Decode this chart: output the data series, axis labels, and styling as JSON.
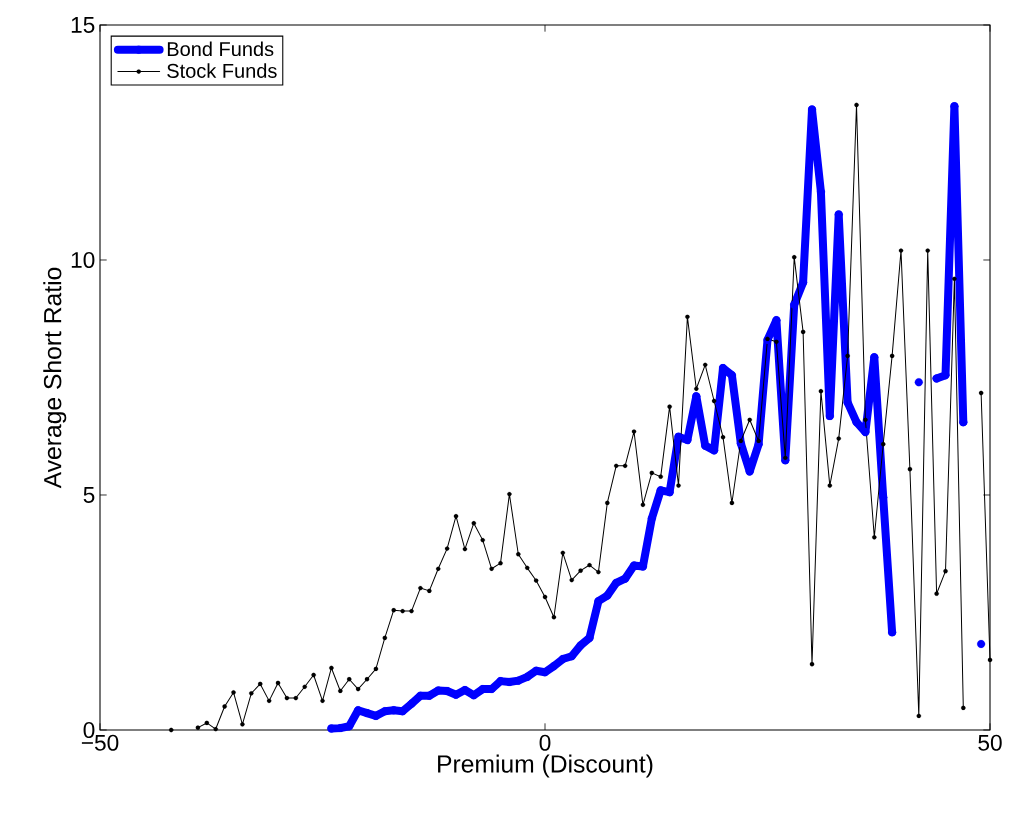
{
  "chart_data": {
    "type": "line",
    "xlabel": "Premium (Discount)",
    "ylabel": "Average Short Ratio",
    "xlim": [
      -50,
      50
    ],
    "ylim": [
      0,
      15
    ],
    "xticks": [
      {
        "value": -50,
        "label": "−50"
      },
      0,
      50
    ],
    "yticks": [
      0,
      5,
      10,
      15
    ],
    "legend": "top left",
    "grid": false,
    "series": [
      {
        "name": "Bond Funds",
        "color": "#0000ff",
        "line_style": "solid",
        "marker": "circle",
        "x": [
          -24,
          -23,
          -22,
          -21,
          -20,
          -19,
          -18,
          -17,
          -16,
          -15,
          -14,
          -13,
          -12,
          -11,
          -10,
          -9,
          -8,
          -7,
          -6,
          -5,
          -4,
          -3,
          -2,
          -1,
          0,
          1,
          2,
          3,
          4,
          5,
          6,
          7,
          8,
          9,
          10,
          11,
          12,
          13,
          14,
          15,
          16,
          17,
          18,
          19,
          20,
          21,
          22,
          23,
          24,
          25,
          26,
          27,
          28,
          29,
          30,
          31,
          32,
          33,
          34,
          35,
          36,
          37,
          38,
          39,
          40,
          41,
          42,
          43,
          44,
          45,
          46,
          47,
          48,
          49
        ],
        "values": [
          0.03,
          0.04,
          0.08,
          0.42,
          0.36,
          0.3,
          0.4,
          0.42,
          0.4,
          0.56,
          0.73,
          0.73,
          0.84,
          0.83,
          0.75,
          0.85,
          0.74,
          0.87,
          0.87,
          1.04,
          1.02,
          1.05,
          1.13,
          1.26,
          1.23,
          1.36,
          1.51,
          1.57,
          1.8,
          1.96,
          2.74,
          2.86,
          3.13,
          3.22,
          3.5,
          3.48,
          4.5,
          5.1,
          5.06,
          6.24,
          6.17,
          7.1,
          6.05,
          5.95,
          7.7,
          7.55,
          6.1,
          5.5,
          6.08,
          8.3,
          8.72,
          5.74,
          9.05,
          9.52,
          13.2,
          11.45,
          6.68,
          10.97,
          6.97,
          6.55,
          6.34,
          7.93,
          4.95,
          2.08,
          null,
          null,
          7.4,
          null,
          7.48,
          7.55,
          13.27,
          6.55,
          null,
          1.83
        ]
      },
      {
        "name": "Stock Funds",
        "color": "#000000",
        "line_style": "solid",
        "marker": "circle",
        "x": [
          -42,
          -41,
          -40,
          -39,
          -38,
          -37,
          -36,
          -35,
          -34,
          -33,
          -32,
          -31,
          -30,
          -29,
          -28,
          -27,
          -26,
          -25,
          -24,
          -23,
          -22,
          -21,
          -20,
          -19,
          -18,
          -17,
          -16,
          -15,
          -14,
          -13,
          -12,
          -11,
          -10,
          -9,
          -8,
          -7,
          -6,
          -5,
          -4,
          -3,
          -2,
          -1,
          0,
          1,
          2,
          3,
          4,
          5,
          6,
          7,
          8,
          9,
          10,
          11,
          12,
          13,
          14,
          15,
          16,
          17,
          18,
          19,
          20,
          21,
          22,
          23,
          24,
          25,
          26,
          27,
          28,
          29,
          30,
          31,
          32,
          33,
          34,
          35,
          36,
          37,
          38,
          39,
          40,
          41,
          42,
          43,
          44,
          45,
          46,
          47,
          48,
          49,
          50
        ],
        "values": [
          0.0,
          null,
          null,
          0.05,
          0.15,
          0.02,
          0.5,
          0.8,
          0.12,
          0.78,
          0.98,
          0.62,
          1.0,
          0.68,
          0.68,
          0.92,
          1.17,
          0.62,
          1.32,
          0.83,
          1.08,
          0.87,
          1.08,
          1.3,
          1.96,
          2.55,
          2.53,
          2.53,
          3.02,
          2.96,
          3.43,
          3.86,
          4.55,
          3.85,
          4.4,
          4.04,
          3.43,
          3.55,
          5.02,
          3.74,
          3.45,
          3.18,
          2.83,
          2.4,
          3.77,
          3.19,
          3.39,
          3.51,
          3.36,
          4.83,
          5.62,
          5.62,
          6.35,
          4.79,
          5.47,
          5.39,
          6.88,
          5.2,
          8.79,
          7.26,
          7.77,
          7.0,
          6.23,
          4.83,
          6.15,
          6.6,
          6.15,
          8.32,
          8.26,
          5.79,
          10.06,
          8.47,
          1.4,
          7.21,
          5.2,
          6.2,
          7.96,
          13.3,
          6.6,
          4.1,
          6.08,
          7.96,
          10.2,
          5.55,
          0.3,
          10.2,
          2.9,
          3.38,
          9.6,
          0.47,
          null,
          7.17,
          1.49
        ]
      }
    ]
  }
}
